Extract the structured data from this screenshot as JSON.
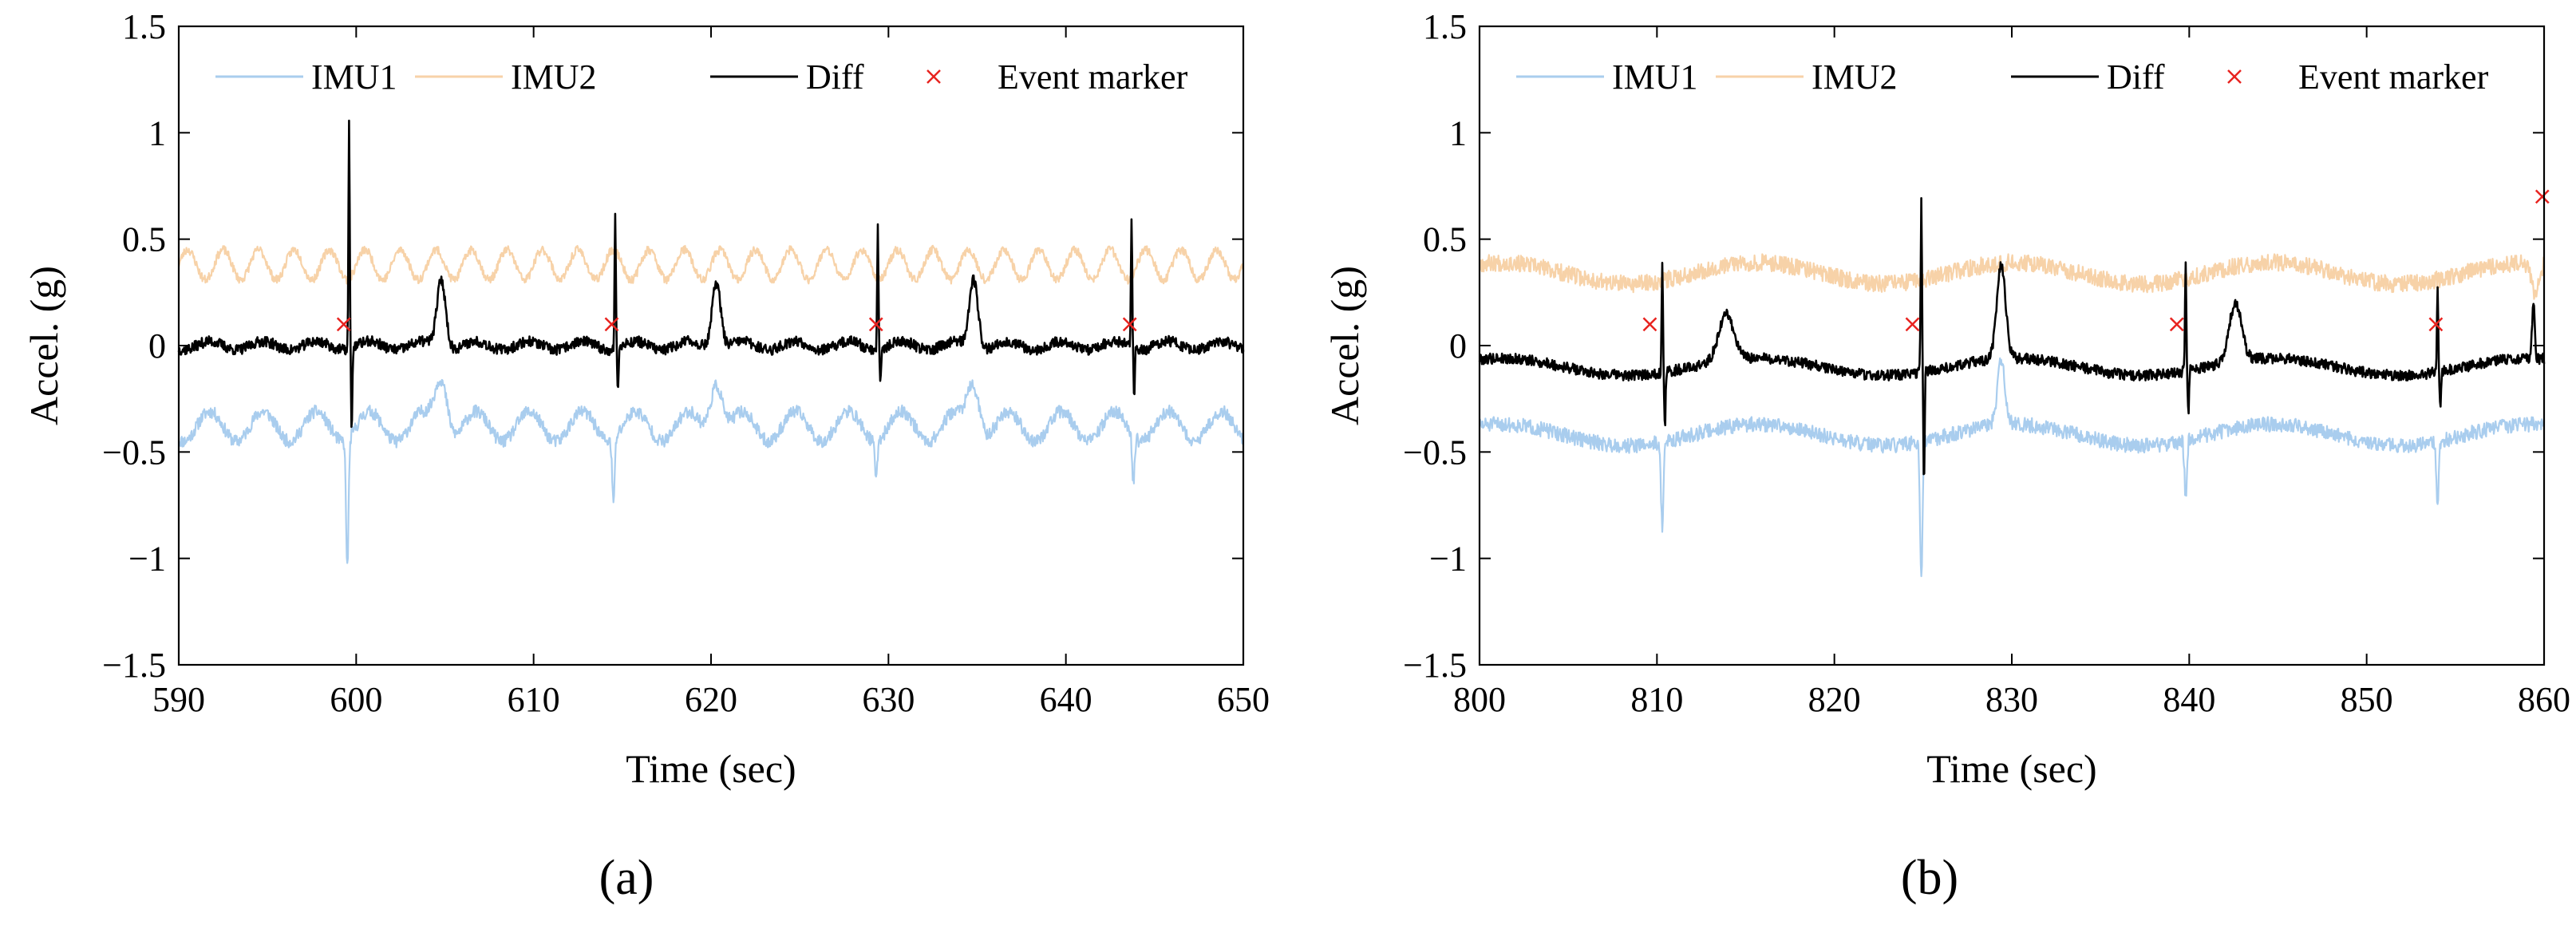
{
  "figure": {
    "panels": [
      {
        "label": "(a)",
        "xlabel": "Time (sec)",
        "ylabel": "Accel. (g)",
        "xlim": [
          590,
          650
        ],
        "ylim": [
          -1.5,
          1.5
        ],
        "x_ticks": [
          590,
          600,
          610,
          620,
          630,
          640,
          650
        ],
        "y_ticks": [
          -1.5,
          -1,
          -0.5,
          0,
          0.5,
          1,
          1.5
        ],
        "y_tick_labels": [
          "−1.5",
          "−1",
          "−0.5",
          "0",
          "0.5",
          "1",
          "1.5"
        ],
        "legend": [
          "IMU1",
          "IMU2",
          "Diff",
          "Event marker"
        ]
      },
      {
        "label": "(b)",
        "xlabel": "Time (sec)",
        "ylabel": "Accel. (g)",
        "xlim": [
          800,
          860
        ],
        "ylim": [
          -1.5,
          1.5
        ],
        "x_ticks": [
          800,
          810,
          820,
          830,
          840,
          850,
          860
        ],
        "y_ticks": [
          -1.5,
          -1,
          -0.5,
          0,
          0.5,
          1,
          1.5
        ],
        "y_tick_labels": [
          "−1.5",
          "−1",
          "−0.5",
          "0",
          "0.5",
          "1",
          "1.5"
        ],
        "legend": [
          "IMU1",
          "IMU2",
          "Diff",
          "Event marker"
        ]
      }
    ]
  },
  "colors": {
    "imu1": "#a9cdee",
    "imu2": "#f7d2a8",
    "diff": "#000000",
    "event": "#e8231f",
    "axis": "#000000"
  },
  "chart_data": [
    {
      "type": "line",
      "title": "",
      "xlabel": "Time (sec)",
      "ylabel": "Accel. (g)",
      "xlim": [
        590,
        650
      ],
      "ylim": [
        -1.5,
        1.5
      ],
      "grid": false,
      "legend_position": "top",
      "series": [
        {
          "name": "IMU1",
          "baseline": -0.38,
          "wave_amp": 0.07,
          "wave_period": 3.0,
          "noise": 0.03,
          "seed": 11,
          "peaks": [
            {
              "t": 599.5,
              "v": -0.98,
              "w": 0.1
            },
            {
              "t": 604.8,
              "v": -0.12,
              "w": 0.5
            },
            {
              "t": 614.5,
              "v": -0.68,
              "w": 0.1
            },
            {
              "t": 620.3,
              "v": -0.12,
              "w": 0.5
            },
            {
              "t": 629.3,
              "v": -0.55,
              "w": 0.1
            },
            {
              "t": 634.8,
              "v": -0.15,
              "w": 0.5
            },
            {
              "t": 643.8,
              "v": -0.6,
              "w": 0.1
            }
          ]
        },
        {
          "name": "IMU2",
          "baseline": 0.38,
          "wave_amp": 0.07,
          "wave_period": 2.0,
          "noise": 0.02,
          "seed": 23,
          "peaks": []
        },
        {
          "name": "Diff",
          "baseline": 0.0,
          "wave_amp": 0.02,
          "wave_period": 3.0,
          "noise": 0.025,
          "seed": 37,
          "peaks": [
            {
              "t": 599.6,
              "v": 1.05,
              "w": 0.05
            },
            {
              "t": 599.75,
              "v": -0.4,
              "w": 0.05
            },
            {
              "t": 604.8,
              "v": 0.32,
              "w": 0.35
            },
            {
              "t": 614.6,
              "v": 0.64,
              "w": 0.05
            },
            {
              "t": 614.75,
              "v": -0.22,
              "w": 0.05
            },
            {
              "t": 620.3,
              "v": 0.31,
              "w": 0.35
            },
            {
              "t": 629.4,
              "v": 0.6,
              "w": 0.05
            },
            {
              "t": 629.55,
              "v": -0.15,
              "w": 0.05
            },
            {
              "t": 634.8,
              "v": 0.32,
              "w": 0.35
            },
            {
              "t": 643.7,
              "v": 0.61,
              "w": 0.05
            },
            {
              "t": 643.85,
              "v": -0.25,
              "w": 0.05
            }
          ]
        },
        {
          "name": "Event marker",
          "kind": "marker",
          "x": [
            599.3,
            614.4,
            629.3,
            643.6
          ],
          "y": [
            0.1,
            0.1,
            0.1,
            0.1
          ]
        }
      ]
    },
    {
      "type": "line",
      "title": "",
      "xlabel": "Time (sec)",
      "ylabel": "Accel. (g)",
      "xlim": [
        800,
        860
      ],
      "ylim": [
        -1.5,
        1.5
      ],
      "grid": false,
      "legend_position": "top",
      "series": [
        {
          "name": "IMU1",
          "baseline": -0.42,
          "wave_amp": 0.05,
          "wave_period": 14.5,
          "noise": 0.035,
          "seed": 51,
          "peaks": [
            {
              "t": 810.3,
              "v": -0.82,
              "w": 0.1
            },
            {
              "t": 824.9,
              "v": -1.08,
              "w": 0.1
            },
            {
              "t": 829.4,
              "v": -0.12,
              "w": 0.3
            },
            {
              "t": 839.8,
              "v": -0.68,
              "w": 0.1
            },
            {
              "t": 854.0,
              "v": -0.7,
              "w": 0.1
            }
          ]
        },
        {
          "name": "IMU2",
          "baseline": 0.34,
          "wave_amp": 0.05,
          "wave_period": 14.5,
          "noise": 0.04,
          "seed": 67,
          "peaks": [
            {
              "t": 859.5,
              "v": 0.2,
              "w": 0.3
            }
          ]
        },
        {
          "name": "Diff",
          "baseline": -0.1,
          "wave_amp": 0.04,
          "wave_period": 14.5,
          "noise": 0.025,
          "seed": 79,
          "peaks": [
            {
              "t": 810.3,
              "v": 0.43,
              "w": 0.05
            },
            {
              "t": 810.45,
              "v": -0.38,
              "w": 0.05
            },
            {
              "t": 813.9,
              "v": 0.12,
              "w": 0.6
            },
            {
              "t": 824.9,
              "v": 0.72,
              "w": 0.05
            },
            {
              "t": 825.05,
              "v": -0.62,
              "w": 0.05
            },
            {
              "t": 829.4,
              "v": 0.34,
              "w": 0.35
            },
            {
              "t": 839.8,
              "v": 0.43,
              "w": 0.05
            },
            {
              "t": 839.95,
              "v": -0.3,
              "w": 0.05
            },
            {
              "t": 842.6,
              "v": 0.17,
              "w": 0.5
            },
            {
              "t": 854.0,
              "v": 0.31,
              "w": 0.05
            },
            {
              "t": 854.15,
              "v": -0.28,
              "w": 0.05
            },
            {
              "t": 859.4,
              "v": 0.18,
              "w": 0.1
            }
          ]
        },
        {
          "name": "Event marker",
          "kind": "marker",
          "x": [
            809.6,
            824.4,
            839.3,
            853.9,
            859.9
          ],
          "y": [
            0.1,
            0.1,
            0.1,
            0.1,
            0.7
          ]
        }
      ]
    }
  ]
}
